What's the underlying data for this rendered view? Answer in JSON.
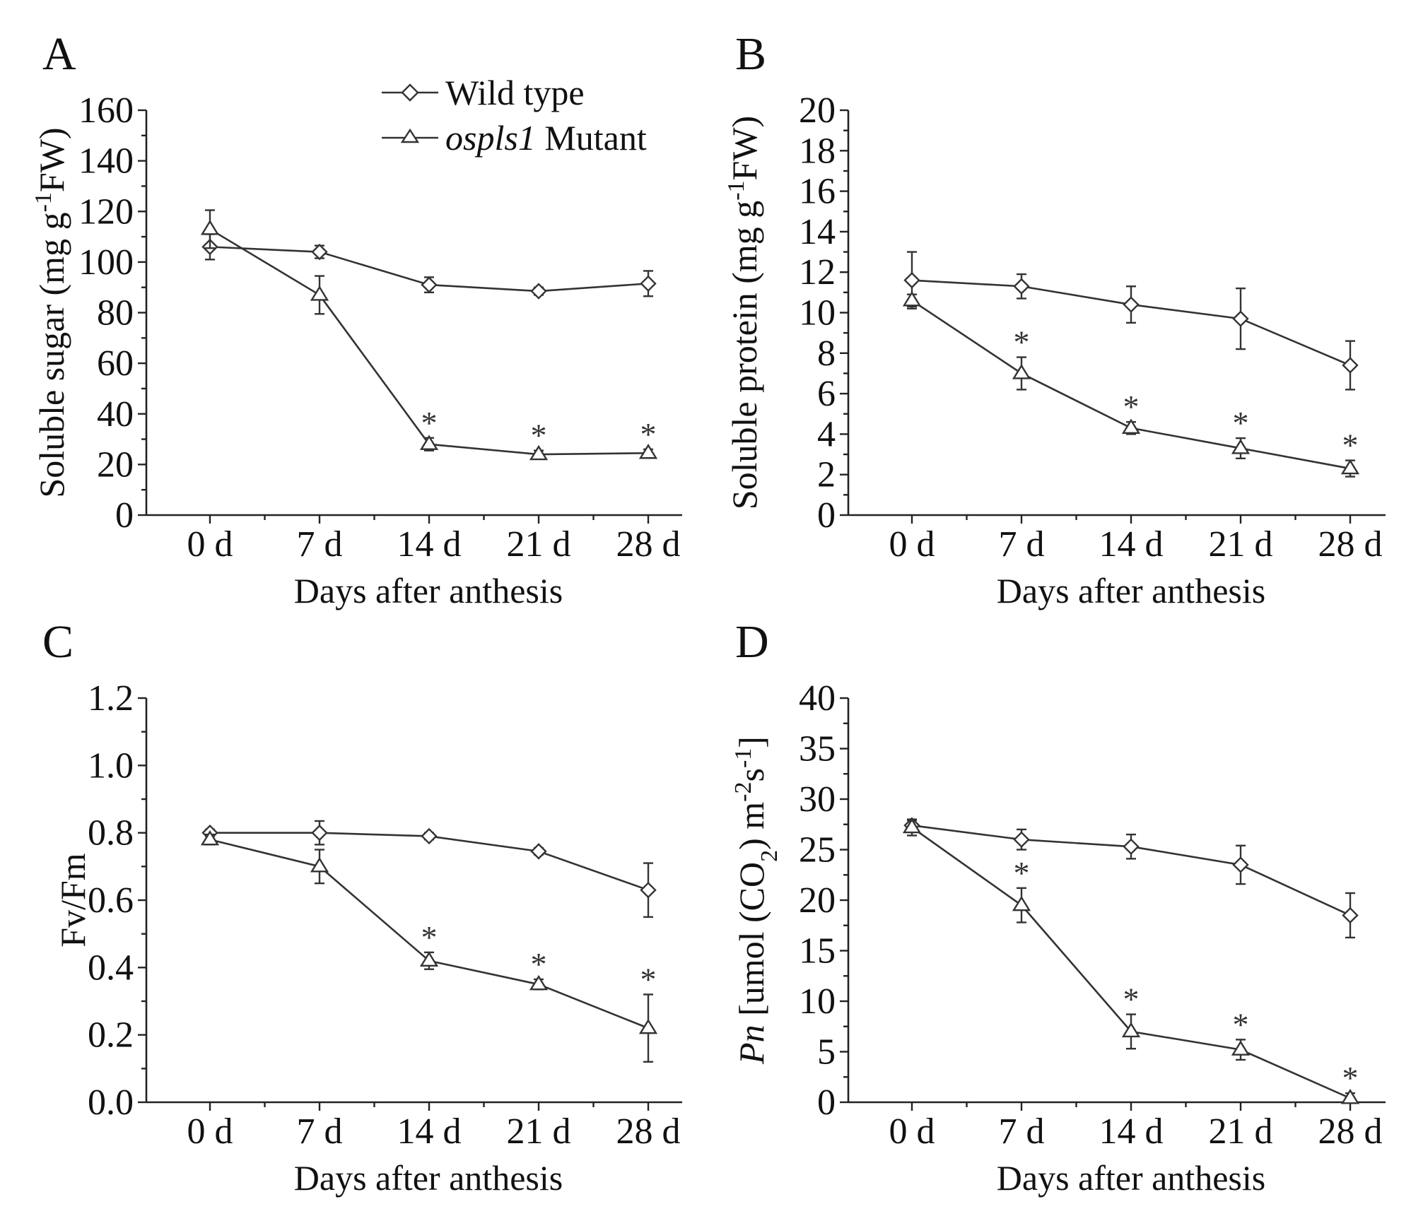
{
  "legend": {
    "wild_type_label": "Wild type",
    "mutant_italic": "ospls1",
    "mutant_rest": " Mutant"
  },
  "chart_data": [
    {
      "type": "line",
      "panel": "A",
      "categories": [
        "0 d",
        "7 d",
        "14 d",
        "21 d",
        "28 d"
      ],
      "xlabel": "Days after anthesis",
      "ylabel_parts": [
        "Soluble sugar (mg g",
        "-1",
        "FW)"
      ],
      "ylim": [
        0,
        160
      ],
      "yticks": [
        0,
        20,
        40,
        60,
        80,
        100,
        120,
        140,
        160
      ],
      "ytick_labels": [
        "0",
        "20",
        "40",
        "60",
        "80",
        "100",
        "120",
        "140",
        "160"
      ],
      "series": [
        {
          "name": "Wild type",
          "marker": "diamond",
          "values": [
            106,
            104,
            91,
            88.5,
            91.5
          ],
          "errors": [
            5,
            2.5,
            3,
            1.5,
            5
          ]
        },
        {
          "name": "ospls1 Mutant",
          "marker": "triangle",
          "values": [
            113,
            87,
            28,
            24,
            24.5
          ],
          "errors": [
            7.5,
            7.5,
            2.5,
            1.5,
            1.5
          ],
          "significant": [
            false,
            false,
            true,
            true,
            true
          ]
        }
      ]
    },
    {
      "type": "line",
      "panel": "B",
      "categories": [
        "0 d",
        "7 d",
        "14 d",
        "21 d",
        "28 d"
      ],
      "xlabel": "Days after anthesis",
      "ylabel_parts": [
        "Soluble protein (mg g",
        "-1",
        "FW)"
      ],
      "ylim": [
        0,
        20
      ],
      "yticks": [
        0,
        2,
        4,
        6,
        8,
        10,
        12,
        14,
        16,
        18,
        20
      ],
      "ytick_labels": [
        "0",
        "2",
        "4",
        "6",
        "8",
        "10",
        "12",
        "14",
        "16",
        "18",
        "20"
      ],
      "series": [
        {
          "name": "Wild type",
          "marker": "diamond",
          "values": [
            11.6,
            11.3,
            10.4,
            9.7,
            7.4
          ],
          "errors": [
            1.4,
            0.6,
            0.9,
            1.5,
            1.2
          ]
        },
        {
          "name": "ospls1 Mutant",
          "marker": "triangle",
          "values": [
            10.6,
            7.0,
            4.3,
            3.3,
            2.3
          ],
          "errors": [
            0.3,
            0.8,
            0.3,
            0.5,
            0.4
          ],
          "significant": [
            false,
            true,
            true,
            true,
            true
          ]
        }
      ]
    },
    {
      "type": "line",
      "panel": "C",
      "categories": [
        "0 d",
        "7 d",
        "14 d",
        "21 d",
        "28 d"
      ],
      "xlabel": "Days after anthesis",
      "ylabel_parts": [
        "Fv/Fm"
      ],
      "ylim": [
        0,
        1.2
      ],
      "yticks": [
        0,
        0.2,
        0.4,
        0.6,
        0.8,
        1.0,
        1.2
      ],
      "ytick_labels": [
        "0.0",
        "0.2",
        "0.4",
        "0.6",
        "0.8",
        "1.0",
        "1.2"
      ],
      "series": [
        {
          "name": "Wild type",
          "marker": "diamond",
          "values": [
            0.8,
            0.8,
            0.79,
            0.745,
            0.63
          ],
          "errors": [
            0.01,
            0.035,
            0.01,
            0.01,
            0.08
          ]
        },
        {
          "name": "ospls1 Mutant",
          "marker": "triangle",
          "values": [
            0.78,
            0.7,
            0.42,
            0.35,
            0.22
          ],
          "errors": [
            0.015,
            0.05,
            0.025,
            0.015,
            0.1
          ],
          "significant": [
            false,
            false,
            true,
            true,
            true
          ]
        }
      ]
    },
    {
      "type": "line",
      "panel": "D",
      "categories": [
        "0 d",
        "7 d",
        "14 d",
        "21 d",
        "28 d"
      ],
      "xlabel": "Days after anthesis",
      "ylabel_parts": [
        "Pn",
        " [umol (CO",
        "2",
        ") m",
        "-2",
        "s",
        "-1",
        "]"
      ],
      "ylim": [
        0,
        40
      ],
      "yticks": [
        0,
        5,
        10,
        15,
        20,
        25,
        30,
        35,
        40
      ],
      "ytick_labels": [
        "0",
        "5",
        "10",
        "15",
        "20",
        "25",
        "30",
        "35",
        "40"
      ],
      "series": [
        {
          "name": "Wild type",
          "marker": "diamond",
          "values": [
            27.4,
            26.0,
            25.3,
            23.5,
            18.5
          ],
          "errors": [
            0.5,
            1.0,
            1.2,
            1.9,
            2.2
          ]
        },
        {
          "name": "ospls1 Mutant",
          "marker": "triangle",
          "values": [
            27.2,
            19.5,
            7.0,
            5.2,
            0.4
          ],
          "errors": [
            0.8,
            1.7,
            1.7,
            1.0,
            0.5
          ],
          "significant": [
            false,
            true,
            true,
            true,
            true
          ]
        }
      ]
    }
  ]
}
